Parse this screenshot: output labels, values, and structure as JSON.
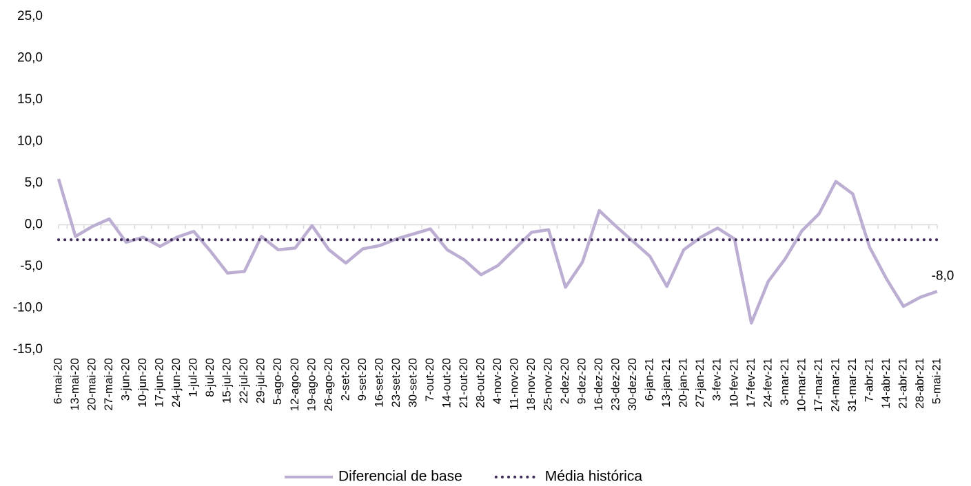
{
  "chart_data": {
    "type": "line",
    "categories": [
      "6-mai-20",
      "13-mai-20",
      "20-mai-20",
      "27-mai-20",
      "3-jun-20",
      "10-jun-20",
      "17-jun-20",
      "24-jun-20",
      "1-jul-20",
      "8-jul-20",
      "15-jul-20",
      "22-jul-20",
      "29-jul-20",
      "5-ago-20",
      "12-ago-20",
      "19-ago-20",
      "26-ago-20",
      "2-set-20",
      "9-set-20",
      "16-set-20",
      "23-set-20",
      "30-set-20",
      "7-out-20",
      "14-out-20",
      "21-out-20",
      "28-out-20",
      "4-nov-20",
      "11-nov-20",
      "18-nov-20",
      "25-nov-20",
      "2-dez-20",
      "9-dez-20",
      "16-dez-20",
      "23-dez-20",
      "30-dez-20",
      "6-jan-21",
      "13-jan-21",
      "20-jan-21",
      "27-jan-21",
      "3-fev-21",
      "10-fev-21",
      "17-fev-21",
      "24-fev-21",
      "3-mar-21",
      "10-mar-21",
      "17-mar-21",
      "24-mar-21",
      "31-mar-21",
      "7-abr-21",
      "14-abr-21",
      "21-abr-21",
      "28-abr-21",
      "5-mai-21"
    ],
    "series": [
      {
        "name": "Diferencial de base",
        "color": "#bcaed2",
        "style": "solid",
        "values": [
          5.5,
          -1.4,
          -0.2,
          0.7,
          -2.1,
          -1.5,
          -2.6,
          -1.5,
          -0.8,
          -3.2,
          -5.8,
          -5.6,
          -1.4,
          -3.0,
          -2.8,
          -0.1,
          -3.0,
          -4.6,
          -2.9,
          -2.5,
          -1.7,
          -1.1,
          -0.5,
          -3.0,
          -4.2,
          -6.0,
          -4.9,
          -2.9,
          -0.9,
          -0.6,
          -7.5,
          -4.5,
          1.7,
          -0.2,
          -2.0,
          -3.8,
          -7.4,
          -3.0,
          -1.5,
          -0.4,
          -1.7,
          -11.8,
          -6.8,
          -4.1,
          -0.7,
          1.3,
          5.2,
          3.7,
          -2.7,
          -6.5,
          -9.8,
          -8.7,
          -8.0
        ],
        "value_labels": [
          null,
          null,
          null,
          null,
          null,
          null,
          null,
          null,
          null,
          null,
          null,
          null,
          null,
          null,
          null,
          null,
          null,
          null,
          null,
          null,
          null,
          null,
          null,
          null,
          null,
          null,
          null,
          null,
          null,
          null,
          null,
          null,
          null,
          null,
          null,
          null,
          null,
          null,
          null,
          null,
          null,
          null,
          null,
          null,
          null,
          null,
          null,
          null,
          null,
          null,
          null,
          null,
          "-8,0"
        ]
      },
      {
        "name": "Média histórica",
        "color": "#3f2b57",
        "style": "dotted",
        "values": [
          -1.8,
          -1.8,
          -1.8,
          -1.8,
          -1.8,
          -1.8,
          -1.8,
          -1.8,
          -1.8,
          -1.8,
          -1.8,
          -1.8,
          -1.8,
          -1.8,
          -1.8,
          -1.8,
          -1.8,
          -1.8,
          -1.8,
          -1.8,
          -1.8,
          -1.8,
          -1.8,
          -1.8,
          -1.8,
          -1.8,
          -1.8,
          -1.8,
          -1.8,
          -1.8,
          -1.8,
          -1.8,
          -1.8,
          -1.8,
          -1.8,
          -1.8,
          -1.8,
          -1.8,
          -1.8,
          -1.8,
          -1.8,
          -1.8,
          -1.8,
          -1.8,
          -1.8,
          -1.8,
          -1.8,
          -1.8,
          -1.8,
          -1.8,
          -1.8,
          -1.8,
          -1.8
        ]
      }
    ],
    "ylim": [
      -15,
      25
    ],
    "yticks": [
      {
        "value": -15,
        "label": "-15,0"
      },
      {
        "value": -10,
        "label": "-10,0"
      },
      {
        "value": -5,
        "label": "-5,0"
      },
      {
        "value": 0,
        "label": "0,0"
      },
      {
        "value": 5,
        "label": "5,0"
      },
      {
        "value": 10,
        "label": "10,0"
      },
      {
        "value": 15,
        "label": "15,0"
      },
      {
        "value": 20,
        "label": "20,0"
      },
      {
        "value": 25,
        "label": "25,0"
      }
    ],
    "grid": false,
    "legend": "bottom"
  }
}
